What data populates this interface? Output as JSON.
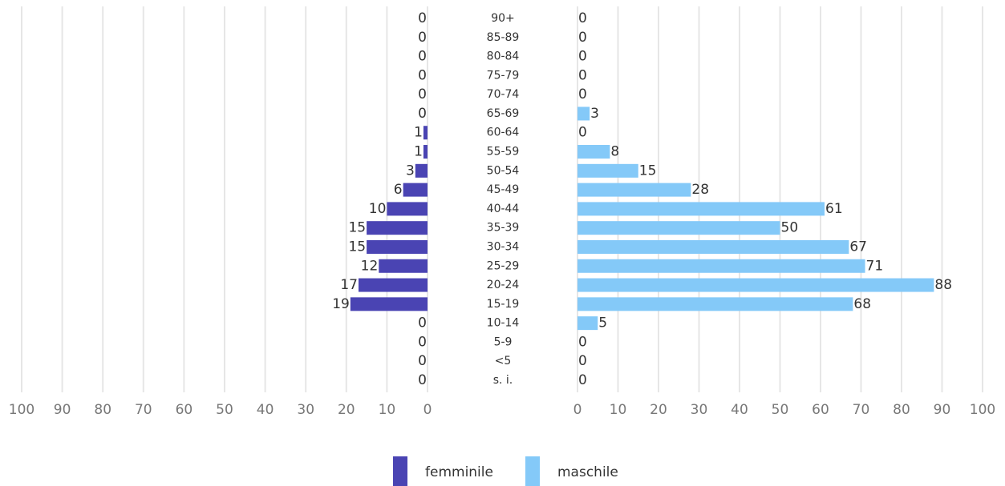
{
  "chart_data": {
    "type": "bar",
    "orientation": "horizontal",
    "categories": [
      "90+",
      "85-89",
      "80-84",
      "75-79",
      "70-74",
      "65-69",
      "60-64",
      "55-59",
      "50-54",
      "45-49",
      "40-44",
      "35-39",
      "30-34",
      "25-29",
      "20-24",
      "15-19",
      "10-14",
      "5-9",
      "<5",
      "s. i."
    ],
    "series": [
      {
        "name": "femminile",
        "color": "#4a44b3",
        "values": [
          0,
          0,
          0,
          0,
          0,
          0,
          1,
          1,
          3,
          6,
          10,
          15,
          15,
          12,
          17,
          19,
          0,
          0,
          0,
          0
        ]
      },
      {
        "name": "maschile",
        "color": "#84c9f8",
        "values": [
          0,
          0,
          0,
          0,
          0,
          3,
          0,
          8,
          15,
          28,
          61,
          50,
          67,
          71,
          88,
          68,
          5,
          0,
          0,
          0
        ]
      }
    ],
    "xlim": [
      0,
      100
    ],
    "xticks": [
      0,
      10,
      20,
      30,
      40,
      50,
      60,
      70,
      80,
      90,
      100
    ],
    "grid": true
  }
}
